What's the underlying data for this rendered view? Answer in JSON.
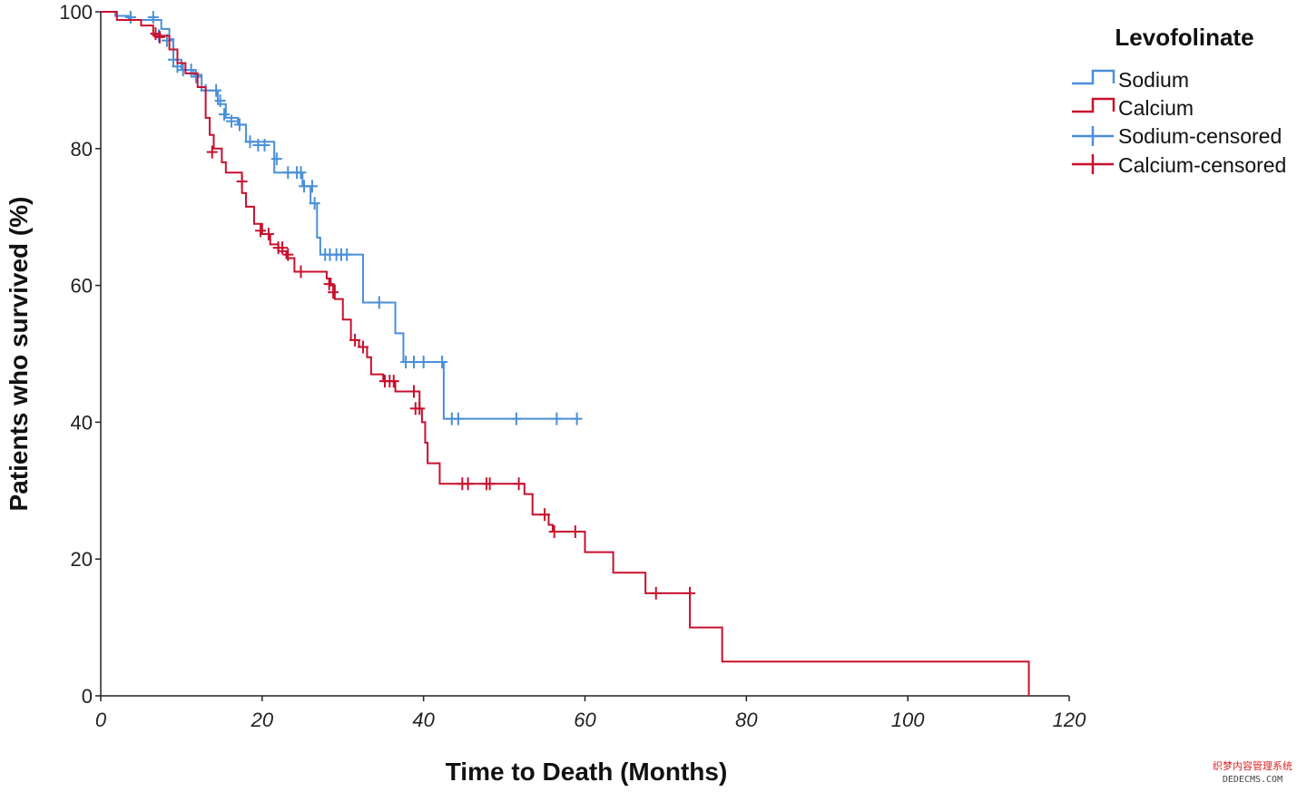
{
  "chart_data": {
    "type": "line",
    "title": "",
    "xlabel": "Time to Death (Months)",
    "ylabel": "Patients who survived (%)",
    "xlim": [
      0,
      120
    ],
    "ylim": [
      0,
      100
    ],
    "x_ticks": [
      "0",
      "20",
      "40",
      "60",
      "80",
      "100",
      "120"
    ],
    "y_ticks": [
      "0",
      "20",
      "40",
      "60",
      "80",
      "100"
    ],
    "legend": {
      "title": "Levofolinate",
      "position": "top-right",
      "entries": [
        "Sodium",
        "Calcium",
        "Sodium-censored",
        "Calcium-censored"
      ]
    },
    "grid": false,
    "series": [
      {
        "name": "Sodium",
        "color": "#4a8fd8",
        "steps": [
          [
            0,
            100
          ],
          [
            1.8,
            99.4
          ],
          [
            3.5,
            98.8
          ],
          [
            7.5,
            97.5
          ],
          [
            8.5,
            96.0
          ],
          [
            9.0,
            93.0
          ],
          [
            10.0,
            91.5
          ],
          [
            11.5,
            90.8
          ],
          [
            12.5,
            88.5
          ],
          [
            14.5,
            86.5
          ],
          [
            15.5,
            84.5
          ],
          [
            17.0,
            83.5
          ],
          [
            18.0,
            81.0
          ],
          [
            21.5,
            76.5
          ],
          [
            25.0,
            74.5
          ],
          [
            26.0,
            72.0
          ],
          [
            26.8,
            67.0
          ],
          [
            27.2,
            64.5
          ],
          [
            32.5,
            57.5
          ],
          [
            36.5,
            53.0
          ],
          [
            37.5,
            48.8
          ],
          [
            42.5,
            40.5
          ]
        ],
        "end_x": 59.2,
        "censored": [
          [
            3.7,
            99.2
          ],
          [
            6.5,
            99.2
          ],
          [
            7.2,
            96.5
          ],
          [
            8.2,
            95.8
          ],
          [
            9.0,
            93.0
          ],
          [
            9.5,
            92.0
          ],
          [
            10.2,
            91.5
          ],
          [
            11.2,
            91.5
          ],
          [
            11.8,
            90.5
          ],
          [
            13.0,
            88.5
          ],
          [
            14.3,
            88.5
          ],
          [
            14.8,
            87.0
          ],
          [
            15.3,
            85.0
          ],
          [
            16.2,
            84.0
          ],
          [
            17.2,
            83.5
          ],
          [
            18.5,
            81.0
          ],
          [
            19.5,
            80.5
          ],
          [
            20.3,
            80.5
          ],
          [
            21.8,
            78.5
          ],
          [
            23.2,
            76.5
          ],
          [
            24.3,
            76.5
          ],
          [
            24.8,
            76.5
          ],
          [
            25.2,
            74.5
          ],
          [
            26.2,
            74.5
          ],
          [
            26.5,
            72.0
          ],
          [
            27.8,
            64.5
          ],
          [
            28.4,
            64.5
          ],
          [
            29.2,
            64.5
          ],
          [
            29.8,
            64.5
          ],
          [
            30.5,
            64.5
          ],
          [
            34.5,
            57.5
          ],
          [
            37.8,
            48.8
          ],
          [
            38.8,
            48.8
          ],
          [
            40.0,
            48.8
          ],
          [
            42.3,
            48.8
          ],
          [
            43.5,
            40.5
          ],
          [
            44.3,
            40.5
          ],
          [
            51.5,
            40.5
          ],
          [
            56.5,
            40.5
          ],
          [
            59.0,
            40.5
          ]
        ]
      },
      {
        "name": "Calcium",
        "color": "#c8102e",
        "steps": [
          [
            0,
            100
          ],
          [
            2.0,
            98.8
          ],
          [
            5.0,
            98.0
          ],
          [
            6.5,
            96.5
          ],
          [
            8.5,
            94.5
          ],
          [
            9.5,
            92.5
          ],
          [
            10.5,
            91.0
          ],
          [
            12.0,
            89.0
          ],
          [
            13.0,
            84.5
          ],
          [
            13.5,
            82.0
          ],
          [
            14.0,
            80.0
          ],
          [
            15.0,
            78.0
          ],
          [
            15.5,
            76.5
          ],
          [
            17.5,
            73.5
          ],
          [
            18.0,
            71.5
          ],
          [
            19.0,
            69.0
          ],
          [
            20.0,
            67.5
          ],
          [
            21.0,
            66.0
          ],
          [
            22.0,
            65.0
          ],
          [
            23.0,
            64.0
          ],
          [
            24.0,
            62.0
          ],
          [
            28.0,
            61.0
          ],
          [
            28.5,
            60.0
          ],
          [
            29.0,
            58.0
          ],
          [
            30.0,
            55.0
          ],
          [
            31.0,
            52.0
          ],
          [
            32.0,
            51.0
          ],
          [
            33.0,
            49.5
          ],
          [
            33.5,
            47.0
          ],
          [
            35.0,
            46.0
          ],
          [
            36.5,
            44.5
          ],
          [
            39.5,
            42.0
          ],
          [
            39.8,
            40.0
          ],
          [
            40.2,
            37.0
          ],
          [
            40.5,
            34.0
          ],
          [
            42.0,
            31.0
          ],
          [
            52.5,
            29.5
          ],
          [
            53.5,
            26.5
          ],
          [
            55.5,
            25.0
          ],
          [
            56.0,
            24.0
          ],
          [
            60.0,
            21.0
          ],
          [
            63.5,
            18.0
          ],
          [
            67.5,
            15.0
          ],
          [
            73.0,
            10.0
          ],
          [
            77.0,
            5.0
          ],
          [
            115.0,
            0.0
          ]
        ],
        "end_x": 115.0,
        "censored": [
          [
            6.8,
            96.8
          ],
          [
            7.3,
            96.3
          ],
          [
            13.8,
            79.5
          ],
          [
            17.5,
            75.2
          ],
          [
            19.8,
            68.0
          ],
          [
            20.8,
            67.5
          ],
          [
            22.0,
            65.5
          ],
          [
            22.5,
            65.5
          ],
          [
            23.2,
            64.5
          ],
          [
            24.8,
            62.0
          ],
          [
            28.3,
            60.2
          ],
          [
            28.8,
            59.0
          ],
          [
            31.5,
            52.0
          ],
          [
            32.5,
            51.0
          ],
          [
            35.2,
            46.0
          ],
          [
            35.8,
            46.0
          ],
          [
            36.3,
            46.0
          ],
          [
            38.8,
            44.5
          ],
          [
            39.0,
            42.0
          ],
          [
            39.5,
            42.0
          ],
          [
            44.8,
            31.0
          ],
          [
            45.5,
            31.0
          ],
          [
            47.8,
            31.0
          ],
          [
            48.2,
            31.0
          ],
          [
            51.8,
            31.0
          ],
          [
            55.0,
            26.5
          ],
          [
            56.2,
            24.0
          ],
          [
            58.8,
            24.0
          ],
          [
            68.8,
            15.0
          ],
          [
            73.0,
            15.0
          ]
        ]
      }
    ]
  },
  "watermark": {
    "line1": "织梦内容管理系统",
    "line2": "DEDECMS.COM"
  }
}
